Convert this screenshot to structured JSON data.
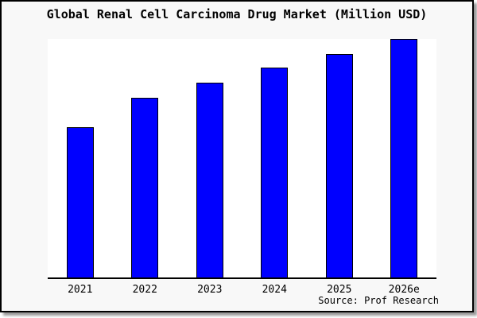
{
  "source": "Source: Prof Research",
  "colors": {
    "bar_fill": "#0000ff",
    "bar_edge": "#000000",
    "figure_background": "#f8f8f8",
    "plot_background": "#ffffff",
    "axis_line": "#000000",
    "frame_border": "#000000",
    "text": "#000000"
  },
  "chart_data": {
    "type": "bar",
    "title": "Global Renal Cell Carcinoma Drug Market (Million USD)",
    "categories": [
      "2021",
      "2022",
      "2023",
      "2024",
      "2025",
      "2026e"
    ],
    "values": [
      63,
      75.3,
      81.7,
      88,
      93.7,
      100
    ],
    "note": "No y-axis scale shown in image; values are relative bar heights as percent of the tallest (2026e) bar.",
    "xlabel": "",
    "ylabel": "",
    "ylim": [
      0,
      100
    ],
    "grid": false,
    "legend": false,
    "y_axis_visible": false,
    "x_axis_line_visible": true
  }
}
